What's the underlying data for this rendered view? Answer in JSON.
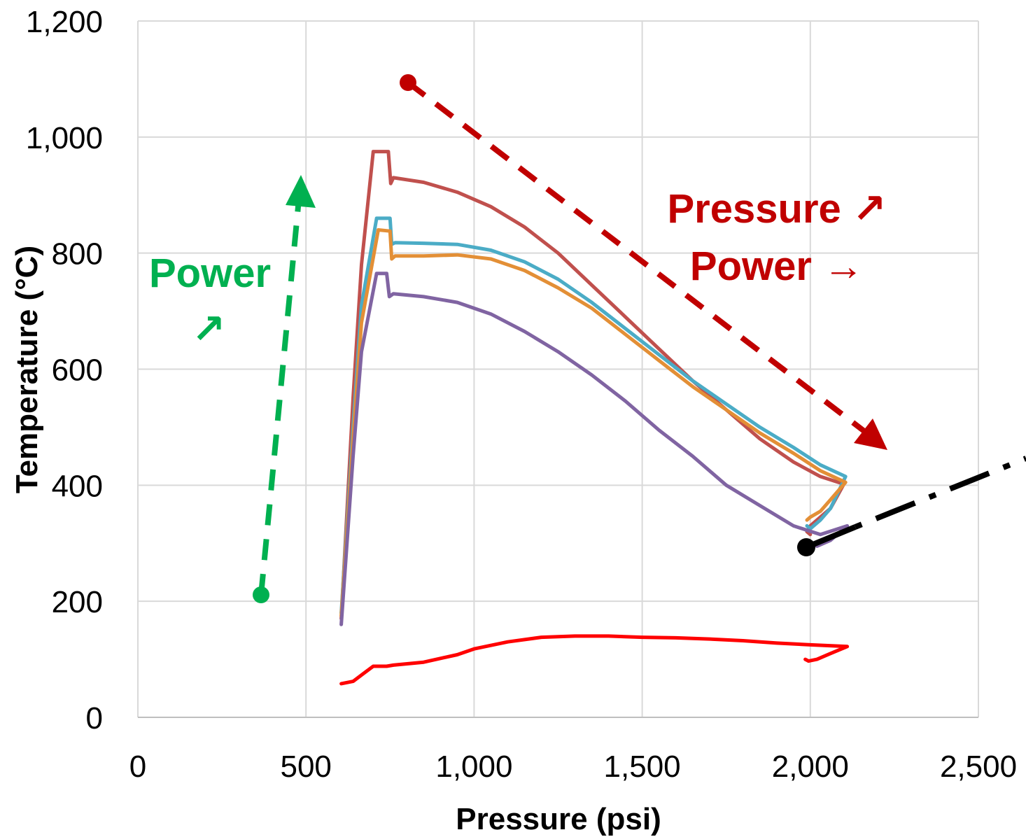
{
  "chart_data": {
    "type": "line",
    "xlabel": "Pressure (psi)",
    "ylabel": "Temperature (°C)",
    "xlim": [
      0,
      2500
    ],
    "ylim": [
      0,
      1200
    ],
    "xticks": [
      0,
      500,
      1000,
      1500,
      2000,
      2500
    ],
    "yticks": [
      0,
      200,
      400,
      600,
      800,
      1000,
      1200
    ],
    "xtick_labels": [
      "0",
      "500",
      "1,000",
      "1,500",
      "2,000",
      "2,500"
    ],
    "ytick_labels": [
      "0",
      "200",
      "400",
      "600",
      "800",
      "1,000",
      "1,200"
    ],
    "grid": true,
    "series": [
      {
        "color": "#c0504d",
        "points": [
          [
            605,
            170
          ],
          [
            640,
            550
          ],
          [
            665,
            780
          ],
          [
            700,
            975
          ],
          [
            745,
            975
          ],
          [
            752,
            920
          ],
          [
            760,
            930
          ],
          [
            850,
            922
          ],
          [
            950,
            905
          ],
          [
            1050,
            880
          ],
          [
            1150,
            845
          ],
          [
            1250,
            800
          ],
          [
            1350,
            745
          ],
          [
            1450,
            690
          ],
          [
            1550,
            635
          ],
          [
            1650,
            580
          ],
          [
            1750,
            530
          ],
          [
            1850,
            480
          ],
          [
            1950,
            440
          ],
          [
            2030,
            415
          ],
          [
            2100,
            402
          ],
          [
            2060,
            360
          ],
          [
            2030,
            345
          ],
          [
            2000,
            330
          ],
          [
            1990,
            320
          ],
          [
            2000,
            315
          ]
        ]
      },
      {
        "color": "#4bacc6",
        "points": [
          [
            605,
            180
          ],
          [
            640,
            500
          ],
          [
            665,
            710
          ],
          [
            710,
            860
          ],
          [
            750,
            860
          ],
          [
            755,
            815
          ],
          [
            765,
            818
          ],
          [
            850,
            817
          ],
          [
            950,
            815
          ],
          [
            1050,
            805
          ],
          [
            1150,
            785
          ],
          [
            1250,
            755
          ],
          [
            1350,
            715
          ],
          [
            1450,
            670
          ],
          [
            1550,
            625
          ],
          [
            1650,
            580
          ],
          [
            1750,
            540
          ],
          [
            1850,
            500
          ],
          [
            1950,
            465
          ],
          [
            2030,
            435
          ],
          [
            2105,
            415
          ],
          [
            2060,
            360
          ],
          [
            2030,
            340
          ],
          [
            2000,
            325
          ],
          [
            1990,
            330
          ]
        ]
      },
      {
        "color": "#e38f36",
        "points": [
          [
            605,
            175
          ],
          [
            640,
            480
          ],
          [
            665,
            680
          ],
          [
            715,
            840
          ],
          [
            750,
            838
          ],
          [
            755,
            790
          ],
          [
            765,
            795
          ],
          [
            850,
            795
          ],
          [
            950,
            797
          ],
          [
            1050,
            790
          ],
          [
            1150,
            770
          ],
          [
            1250,
            740
          ],
          [
            1350,
            705
          ],
          [
            1450,
            660
          ],
          [
            1550,
            615
          ],
          [
            1650,
            570
          ],
          [
            1750,
            530
          ],
          [
            1850,
            490
          ],
          [
            1950,
            455
          ],
          [
            2030,
            425
          ],
          [
            2105,
            405
          ],
          [
            2060,
            375
          ],
          [
            2030,
            355
          ],
          [
            2000,
            345
          ],
          [
            1990,
            340
          ]
        ]
      },
      {
        "color": "#8064a2",
        "points": [
          [
            605,
            160
          ],
          [
            640,
            450
          ],
          [
            665,
            630
          ],
          [
            710,
            765
          ],
          [
            740,
            765
          ],
          [
            748,
            725
          ],
          [
            760,
            730
          ],
          [
            850,
            725
          ],
          [
            950,
            715
          ],
          [
            1050,
            695
          ],
          [
            1150,
            665
          ],
          [
            1250,
            630
          ],
          [
            1350,
            590
          ],
          [
            1450,
            545
          ],
          [
            1550,
            495
          ],
          [
            1650,
            450
          ],
          [
            1750,
            400
          ],
          [
            1850,
            365
          ],
          [
            1950,
            330
          ],
          [
            2030,
            315
          ],
          [
            2110,
            330
          ],
          [
            2060,
            305
          ],
          [
            2020,
            295
          ],
          [
            2000,
            300
          ],
          [
            1990,
            300
          ]
        ]
      },
      {
        "color": "#ff0000",
        "points": [
          [
            605,
            58
          ],
          [
            640,
            62
          ],
          [
            670,
            75
          ],
          [
            700,
            88
          ],
          [
            740,
            88
          ],
          [
            760,
            90
          ],
          [
            850,
            95
          ],
          [
            950,
            108
          ],
          [
            1000,
            118
          ],
          [
            1100,
            130
          ],
          [
            1200,
            138
          ],
          [
            1300,
            140
          ],
          [
            1400,
            140
          ],
          [
            1500,
            138
          ],
          [
            1600,
            137
          ],
          [
            1700,
            135
          ],
          [
            1800,
            132
          ],
          [
            1900,
            128
          ],
          [
            2000,
            125
          ],
          [
            2110,
            122
          ],
          [
            2060,
            110
          ],
          [
            2020,
            100
          ],
          [
            1995,
            97
          ],
          [
            1985,
            100
          ]
        ]
      }
    ]
  },
  "annotations": {
    "power_left": "Power",
    "power_left_arrow": "↗",
    "pressure_right": "Pressure ↗",
    "power_right": "Power →"
  },
  "colors": {
    "green": "#00b050",
    "dark_red": "#c00000",
    "black": "#000000"
  }
}
